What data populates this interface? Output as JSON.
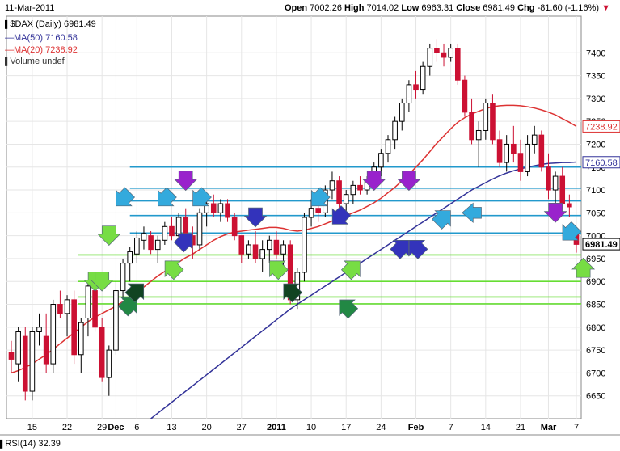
{
  "header": {
    "date": "11-Mar-2011",
    "open_label": "Open",
    "open": "7002.26",
    "high_label": "High",
    "high": "7014.02",
    "low_label": "Low",
    "low": "6963.31",
    "close_label": "Close",
    "close": "6981.49",
    "chg_label": "Chg",
    "chg": "-81.60 (-1.16%)"
  },
  "legend": {
    "symbol": "$DAX (Daily) 6981.49",
    "ma50": "MA(50) 7160.58",
    "ma20": "MA(20) 7238.92",
    "volume": "Volume undef"
  },
  "footer": {
    "rsi": "RSI(14) 32.39"
  },
  "colors": {
    "up": "#000000",
    "down": "#cc1133",
    "ma20": "#dd3333",
    "ma50": "#333399",
    "hline_blue": "#2299cc",
    "hline_green": "#66dd33"
  },
  "chart_data": {
    "type": "candlestick",
    "ylim": [
      6600,
      7480
    ],
    "y_ticks": [
      6650,
      6700,
      6750,
      6800,
      6850,
      6900,
      6950,
      7000,
      7050,
      7100,
      7150,
      7200,
      7250,
      7300,
      7350,
      7400
    ],
    "x_ticks": [
      {
        "label": "15",
        "i": 3
      },
      {
        "label": "22",
        "i": 8
      },
      {
        "label": "29",
        "i": 13
      },
      {
        "label": "Dec",
        "i": 15
      },
      {
        "label": "6",
        "i": 18
      },
      {
        "label": "13",
        "i": 23
      },
      {
        "label": "20",
        "i": 28
      },
      {
        "label": "27",
        "i": 33
      },
      {
        "label": "2011",
        "i": 38
      },
      {
        "label": "10",
        "i": 43
      },
      {
        "label": "17",
        "i": 48
      },
      {
        "label": "24",
        "i": 53
      },
      {
        "label": "Feb",
        "i": 58
      },
      {
        "label": "7",
        "i": 63
      },
      {
        "label": "14",
        "i": 68
      },
      {
        "label": "21",
        "i": 73
      },
      {
        "label": "Mar",
        "i": 77
      },
      {
        "label": "7",
        "i": 81
      }
    ],
    "last_labels": [
      {
        "value": 7238.92,
        "text": "7238.92",
        "color": "#dd3333"
      },
      {
        "value": 7160.58,
        "text": "7160.58",
        "color": "#333399"
      },
      {
        "value": 6981.49,
        "text": "6981.49",
        "color": "#000000"
      }
    ],
    "ohlc": [
      [
        6745,
        6770,
        6700,
        6730
      ],
      [
        6720,
        6800,
        6680,
        6790
      ],
      [
        6780,
        6800,
        6640,
        6660
      ],
      [
        6660,
        6800,
        6640,
        6790
      ],
      [
        6790,
        6830,
        6760,
        6800
      ],
      [
        6780,
        6830,
        6700,
        6720
      ],
      [
        6720,
        6860,
        6700,
        6850
      ],
      [
        6850,
        6880,
        6820,
        6830
      ],
      [
        6830,
        6870,
        6780,
        6860
      ],
      [
        6860,
        6880,
        6720,
        6740
      ],
      [
        6740,
        6820,
        6700,
        6810
      ],
      [
        6820,
        6900,
        6780,
        6890
      ],
      [
        6880,
        6890,
        6790,
        6800
      ],
      [
        6800,
        6820,
        6680,
        6690
      ],
      [
        6690,
        6760,
        6650,
        6750
      ],
      [
        6750,
        6900,
        6740,
        6880
      ],
      [
        6880,
        6950,
        6860,
        6940
      ],
      [
        6940,
        6975,
        6900,
        6965
      ],
      [
        6960,
        7010,
        6940,
        6995
      ],
      [
        6990,
        7020,
        6970,
        7005
      ],
      [
        7000,
        7010,
        6960,
        6970
      ],
      [
        6970,
        7000,
        6940,
        6990
      ],
      [
        6990,
        7030,
        6980,
        7020
      ],
      [
        7020,
        7040,
        6990,
        7000
      ],
      [
        7000,
        7050,
        6985,
        7040
      ],
      [
        7040,
        7060,
        6990,
        7000
      ],
      [
        7000,
        7020,
        6950,
        6980
      ],
      [
        6980,
        7060,
        6970,
        7050
      ],
      [
        7050,
        7080,
        7020,
        7070
      ],
      [
        7070,
        7090,
        7040,
        7050
      ],
      [
        7050,
        7080,
        7030,
        7070
      ],
      [
        7070,
        7080,
        7030,
        7040
      ],
      [
        7040,
        7050,
        6990,
        7000
      ],
      [
        7000,
        7000,
        6940,
        6960
      ],
      [
        6960,
        6990,
        6950,
        6980
      ],
      [
        6980,
        7010,
        6940,
        6950
      ],
      [
        6950,
        6990,
        6920,
        6970
      ],
      [
        6970,
        7000,
        6940,
        6990
      ],
      [
        6990,
        7010,
        6950,
        6960
      ],
      [
        6960,
        6990,
        6930,
        6980
      ],
      [
        6980,
        6990,
        6850,
        6860
      ],
      [
        6860,
        6930,
        6840,
        6920
      ],
      [
        6920,
        7050,
        6900,
        7040
      ],
      [
        7040,
        7080,
        7020,
        7060
      ],
      [
        7060,
        7090,
        7030,
        7050
      ],
      [
        7050,
        7110,
        7040,
        7100
      ],
      [
        7100,
        7140,
        7080,
        7120
      ],
      [
        7120,
        7130,
        7060,
        7070
      ],
      [
        7070,
        7100,
        7040,
        7090
      ],
      [
        7090,
        7120,
        7070,
        7110
      ],
      [
        7110,
        7130,
        7090,
        7100
      ],
      [
        7100,
        7130,
        7090,
        7120
      ],
      [
        7120,
        7160,
        7100,
        7150
      ],
      [
        7150,
        7190,
        7130,
        7180
      ],
      [
        7180,
        7220,
        7160,
        7210
      ],
      [
        7210,
        7260,
        7190,
        7250
      ],
      [
        7250,
        7300,
        7230,
        7290
      ],
      [
        7290,
        7340,
        7270,
        7330
      ],
      [
        7330,
        7360,
        7300,
        7320
      ],
      [
        7320,
        7380,
        7310,
        7370
      ],
      [
        7370,
        7420,
        7350,
        7410
      ],
      [
        7410,
        7430,
        7380,
        7400
      ],
      [
        7400,
        7420,
        7370,
        7390
      ],
      [
        7390,
        7420,
        7380,
        7410
      ],
      [
        7410,
        7420,
        7330,
        7340
      ],
      [
        7340,
        7350,
        7260,
        7270
      ],
      [
        7270,
        7300,
        7200,
        7210
      ],
      [
        7210,
        7250,
        7150,
        7230
      ],
      [
        7230,
        7300,
        7210,
        7290
      ],
      [
        7290,
        7310,
        7200,
        7210
      ],
      [
        7210,
        7230,
        7150,
        7160
      ],
      [
        7160,
        7220,
        7140,
        7200
      ],
      [
        7200,
        7240,
        7160,
        7180
      ],
      [
        7180,
        7210,
        7120,
        7140
      ],
      [
        7140,
        7220,
        7130,
        7200
      ],
      [
        7200,
        7240,
        7180,
        7220
      ],
      [
        7220,
        7230,
        7140,
        7150
      ],
      [
        7150,
        7180,
        7080,
        7100
      ],
      [
        7100,
        7140,
        7070,
        7130
      ],
      [
        7130,
        7150,
        7060,
        7070
      ],
      [
        7070,
        7090,
        7040,
        7063
      ],
      [
        7002,
        7014,
        6963,
        6981
      ]
    ],
    "ma20": [
      6700,
      6705,
      6712,
      6720,
      6730,
      6740,
      6752,
      6764,
      6776,
      6788,
      6800,
      6812,
      6822,
      6830,
      6838,
      6846,
      6856,
      6866,
      6876,
      6888,
      6900,
      6912,
      6922,
      6932,
      6942,
      6952,
      6960,
      6970,
      6980,
      6990,
      6998,
      7004,
      7008,
      7010,
      7012,
      7014,
      7016,
      7018,
      7018,
      7016,
      7012,
      7010,
      7012,
      7016,
      7020,
      7026,
      7032,
      7038,
      7044,
      7050,
      7056,
      7064,
      7072,
      7082,
      7094,
      7106,
      7120,
      7134,
      7150,
      7166,
      7184,
      7202,
      7218,
      7234,
      7248,
      7258,
      7266,
      7272,
      7278,
      7282,
      7284,
      7285,
      7285,
      7284,
      7282,
      7279,
      7275,
      7270,
      7264,
      7256,
      7248,
      7239
    ],
    "ma50": [
      null,
      null,
      null,
      null,
      null,
      null,
      null,
      null,
      null,
      null,
      null,
      null,
      null,
      null,
      null,
      null,
      null,
      null,
      null,
      null,
      6600,
      6612,
      6624,
      6636,
      6648,
      6660,
      6672,
      6684,
      6696,
      6708,
      6720,
      6732,
      6744,
      6756,
      6768,
      6780,
      6792,
      6804,
      6816,
      6828,
      6840,
      6850,
      6860,
      6870,
      6880,
      6890,
      6900,
      6910,
      6920,
      6930,
      6940,
      6950,
      6960,
      6970,
      6980,
      6990,
      7000,
      7010,
      7020,
      7030,
      7040,
      7050,
      7060,
      7070,
      7080,
      7090,
      7100,
      7108,
      7116,
      7124,
      7131,
      7137,
      7142,
      7146,
      7150,
      7153,
      7156,
      7158,
      7159,
      7160,
      7160,
      7161
    ],
    "hlines": [
      {
        "value": 7150,
        "color": "#2299cc"
      },
      {
        "value": 7104,
        "color": "#2299cc"
      },
      {
        "value": 7076,
        "color": "#2299cc"
      },
      {
        "value": 7044,
        "color": "#2299cc"
      },
      {
        "value": 7006,
        "color": "#2299cc"
      },
      {
        "value": 6958,
        "color": "#66dd33"
      },
      {
        "value": 6900,
        "color": "#66dd33"
      },
      {
        "value": 6866,
        "color": "#66dd33"
      },
      {
        "value": 6851,
        "color": "#66dd33"
      }
    ],
    "arrows": [
      {
        "i": 25,
        "v": 7120,
        "dir": "down",
        "color": "#9922cc"
      },
      {
        "i": 52,
        "v": 7120,
        "dir": "down",
        "color": "#9922cc"
      },
      {
        "i": 57,
        "v": 7120,
        "dir": "down",
        "color": "#9922cc"
      },
      {
        "i": 78,
        "v": 7050,
        "dir": "down",
        "color": "#9922cc"
      },
      {
        "i": 16,
        "v": 7080,
        "dir": "downleft",
        "color": "#33aadd"
      },
      {
        "i": 22,
        "v": 7080,
        "dir": "downleft",
        "color": "#33aadd"
      },
      {
        "i": 27,
        "v": 7080,
        "dir": "downleft",
        "color": "#33aadd"
      },
      {
        "i": 44,
        "v": 7080,
        "dir": "downleft",
        "color": "#33aadd"
      },
      {
        "i": 62,
        "v": 7040,
        "dir": "upright",
        "color": "#33aadd"
      },
      {
        "i": 66,
        "v": 7050,
        "dir": "left",
        "color": "#33aadd"
      },
      {
        "i": 80,
        "v": 7005,
        "dir": "downleft",
        "color": "#33aadd"
      },
      {
        "i": 35,
        "v": 7040,
        "dir": "down",
        "color": "#3333bb"
      },
      {
        "i": 47,
        "v": 7040,
        "dir": "downleft",
        "color": "#3333bb"
      },
      {
        "i": 25,
        "v": 6990,
        "dir": "upright",
        "color": "#3333bb"
      },
      {
        "i": 56,
        "v": 6975,
        "dir": "upright",
        "color": "#3333bb"
      },
      {
        "i": 58,
        "v": 6975,
        "dir": "upleft",
        "color": "#3333bb"
      },
      {
        "i": 14,
        "v": 7000,
        "dir": "down",
        "color": "#77dd44"
      },
      {
        "i": 12,
        "v": 6900,
        "dir": "down",
        "color": "#77dd44"
      },
      {
        "i": 13,
        "v": 6900,
        "dir": "down",
        "color": "#77dd44"
      },
      {
        "i": 23,
        "v": 6930,
        "dir": "upleft",
        "color": "#77dd44"
      },
      {
        "i": 38,
        "v": 6930,
        "dir": "upleft",
        "color": "#77dd44"
      },
      {
        "i": 49,
        "v": 6930,
        "dir": "upright",
        "color": "#77dd44"
      },
      {
        "i": 17,
        "v": 6850,
        "dir": "upright",
        "color": "#228844"
      },
      {
        "i": 48,
        "v": 6845,
        "dir": "upleft",
        "color": "#228844"
      },
      {
        "i": 82,
        "v": 6930,
        "dir": "up",
        "color": "#77dd44"
      },
      {
        "i": 18,
        "v": 6880,
        "dir": "upright",
        "color": "#114422"
      },
      {
        "i": 40,
        "v": 6880,
        "dir": "upleft",
        "color": "#114422"
      }
    ]
  }
}
